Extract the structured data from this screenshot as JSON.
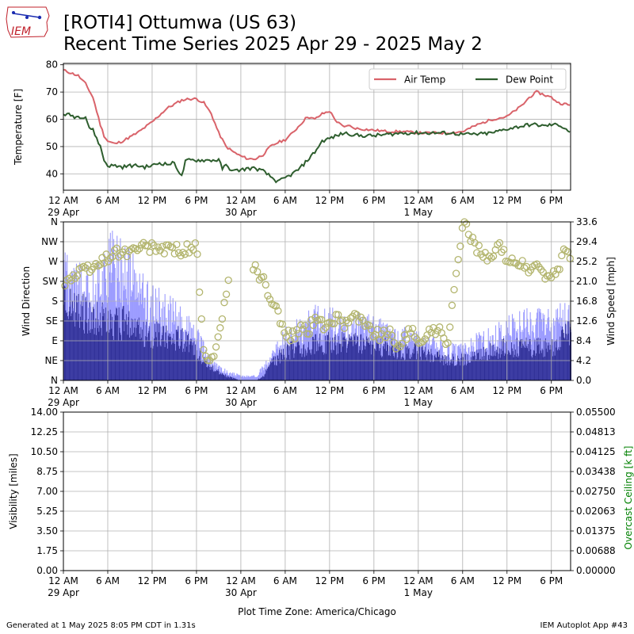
{
  "header": {
    "logo_text": "IEM",
    "title_line1": "[ROTI4] Ottumwa (US 63)",
    "title_line2": "Recent Time Series 2025 Apr 29 - 2025 May 2"
  },
  "footer": {
    "generated": "Generated at 1 May 2025 8:05 PM CDT in 1.31s",
    "app": "IEM Autoplot App #43",
    "timezone": "Plot Time Zone: America/Chicago"
  },
  "colors": {
    "air_temp": "#d9636a",
    "dew_point": "#2e5e2e",
    "wind_bar": "#2f2f96",
    "gust_bar": "#9c9cff",
    "wind_dir": "#b3b56e",
    "ceiling_label": "#008000",
    "grid": "#b0b0b0"
  },
  "chart_data": [
    {
      "type": "line",
      "ylabel": "Temperature [F]",
      "ylim": [
        34,
        80.5
      ],
      "yticks": [
        "40",
        "50",
        "60",
        "70",
        "80"
      ],
      "xlim_hours": [
        0,
        68.6
      ],
      "xticks": [
        "12 AM",
        "6 AM",
        "12 PM",
        "6 PM",
        "12 AM",
        "6 AM",
        "12 PM",
        "6 PM",
        "12 AM",
        "6 AM",
        "12 PM",
        "6 PM"
      ],
      "xtick_dates": [
        "29 Apr",
        "",
        "",
        "",
        "30 Apr",
        "",
        "",
        "",
        "1 May",
        "",
        "",
        ""
      ],
      "legend": "upper-right",
      "grid": true,
      "series": [
        {
          "name": "Air Temp",
          "x_hours": [
            0,
            1,
            2,
            3,
            4,
            5,
            5.5,
            6,
            7,
            8,
            10,
            12,
            14,
            16,
            17,
            18,
            19,
            20,
            21,
            22,
            23,
            24,
            25,
            26,
            27,
            28,
            29,
            30,
            31,
            32,
            33,
            34,
            35,
            36,
            37,
            38,
            38.5,
            39,
            40,
            42,
            44,
            46,
            48,
            50,
            52,
            54,
            56,
            58,
            60,
            61,
            62,
            63,
            64,
            65,
            66,
            66.5,
            67,
            68,
            68.6
          ],
          "values": [
            78,
            77,
            76,
            73,
            68,
            58,
            54,
            52,
            51,
            52,
            55,
            59,
            64,
            67,
            67.5,
            67.5,
            66,
            62,
            55,
            50,
            48,
            46.5,
            45.5,
            45.5,
            47,
            50,
            51.5,
            52.5,
            55,
            58,
            61,
            60,
            62,
            63,
            59,
            57,
            58,
            57,
            56.5,
            56,
            55.5,
            55.5,
            55,
            55,
            55,
            55.5,
            58,
            60,
            61,
            63,
            65,
            68,
            70,
            69,
            68,
            67,
            66,
            65.5,
            65
          ]
        },
        {
          "name": "Dew Point",
          "x_hours": [
            0,
            1,
            1.5,
            2,
            3,
            3.5,
            4,
            5,
            5.5,
            6,
            7,
            8,
            9,
            10,
            11,
            12,
            13,
            14,
            15,
            16,
            16.5,
            17,
            18,
            19,
            20,
            21,
            21.5,
            22,
            23,
            24,
            25,
            26,
            27,
            28,
            29,
            30,
            31,
            32,
            33,
            34,
            35,
            36,
            37,
            38,
            40,
            42,
            44,
            46,
            48,
            50,
            52,
            54,
            56,
            58,
            60,
            62,
            63,
            64,
            65,
            66,
            67,
            68,
            68.6
          ],
          "values": [
            62,
            61.5,
            61,
            61,
            61,
            57,
            56,
            50,
            45,
            43,
            43,
            42.5,
            43,
            43,
            42.5,
            43,
            44,
            43.5,
            44,
            39,
            44.5,
            45,
            45,
            45,
            45,
            45,
            42,
            43,
            41,
            41.5,
            42,
            42,
            41,
            39,
            37,
            38.5,
            40,
            42,
            45,
            48,
            52,
            53,
            54,
            55,
            54,
            54,
            54.5,
            55,
            55,
            55,
            55,
            54.5,
            54.5,
            55,
            56.5,
            57.5,
            58,
            58,
            57.5,
            58,
            58,
            56.5,
            55
          ]
        }
      ]
    },
    {
      "type": "bar",
      "ylabel": "Wind Direction",
      "y2label": "Wind Speed [mph]",
      "dir_ticks": [
        "N",
        "NE",
        "E",
        "SE",
        "S",
        "SW",
        "W",
        "NW",
        "N"
      ],
      "speed_ticks": [
        "0.0",
        "4.2",
        "8.4",
        "12.6",
        "16.8",
        "21.0",
        "25.2",
        "29.4",
        "33.6"
      ],
      "speed_lim": [
        0,
        33.6
      ],
      "dir_lim": [
        0,
        360
      ],
      "xlim_hours": [
        0,
        68.6
      ],
      "xticks": [
        "12 AM",
        "6 AM",
        "12 PM",
        "6 PM",
        "12 AM",
        "6 AM",
        "12 PM",
        "6 PM",
        "12 AM",
        "6 AM",
        "12 PM",
        "6 PM"
      ],
      "xtick_dates": [
        "29 Apr",
        "",
        "",
        "",
        "30 Apr",
        "",
        "",
        "",
        "1 May",
        "",
        "",
        ""
      ],
      "grid": true,
      "wind_speed": {
        "x_hours": [
          0,
          2,
          4,
          6,
          8,
          10,
          12,
          14,
          16,
          18,
          19,
          20,
          21,
          22,
          23,
          24,
          25,
          26,
          27,
          28,
          30,
          32,
          34,
          36,
          38,
          40,
          42,
          44,
          46,
          48,
          50,
          52,
          54,
          56,
          58,
          60,
          62,
          64,
          66,
          68.6
        ],
        "values": [
          19,
          17,
          15,
          14,
          14,
          12,
          11,
          11,
          10,
          7,
          5,
          3,
          2,
          1,
          0.5,
          0,
          0,
          0,
          1,
          4,
          7,
          8,
          9,
          9,
          9,
          9,
          8,
          8,
          7,
          7,
          6,
          5,
          5,
          6,
          7,
          8,
          8,
          8,
          8,
          12
        ]
      },
      "wind_gust": {
        "x_hours": [
          0,
          2,
          4,
          6,
          8,
          10,
          12,
          14,
          16,
          18,
          20,
          22,
          24,
          26,
          28,
          30,
          32,
          34,
          36,
          38,
          40,
          42,
          44,
          46,
          48,
          50,
          52,
          54,
          56,
          58,
          60,
          62,
          64,
          66,
          68.6
        ],
        "values": [
          24,
          22,
          21,
          28,
          27,
          22,
          18,
          16,
          14,
          10,
          4,
          2,
          1,
          1,
          5,
          10,
          12,
          14,
          14,
          12,
          13,
          12,
          11,
          10,
          9,
          8,
          7,
          7,
          9,
          10,
          12,
          13,
          14,
          13,
          16
        ]
      },
      "wind_direction": {
        "x_hours": [
          0,
          1,
          2,
          3,
          4,
          5,
          6,
          7,
          8,
          9,
          10,
          12,
          14,
          16,
          17,
          18,
          19,
          20,
          21,
          22,
          23,
          24,
          25,
          26,
          27,
          28,
          29,
          30,
          31,
          32,
          33,
          34,
          35,
          36,
          37,
          38,
          39,
          40,
          41,
          42,
          43,
          44,
          45,
          46,
          47,
          48,
          49,
          50,
          51,
          52,
          53,
          54,
          55,
          56,
          57,
          58,
          59,
          60,
          61,
          62,
          63,
          64,
          65,
          66,
          67,
          68,
          68.6
        ],
        "values": [
          220,
          230,
          240,
          250,
          255,
          265,
          280,
          290,
          290,
          290,
          300,
          300,
          300,
          295,
          300,
          305,
          50,
          40,
          90,
          200,
          310,
          290,
          280,
          250,
          230,
          180,
          150,
          110,
          100,
          120,
          110,
          140,
          130,
          120,
          150,
          130,
          150,
          140,
          120,
          110,
          100,
          110,
          70,
          100,
          110,
          90,
          100,
          110,
          120,
          80,
          220,
          360,
          330,
          300,
          280,
          290,
          300,
          280,
          270,
          260,
          250,
          260,
          240,
          230,
          260,
          300,
          270
        ]
      }
    },
    {
      "type": "line",
      "ylabel": "Visibility [miles]",
      "y2label": "Overcast Ceiling [k ft]",
      "ylim": [
        0,
        14
      ],
      "y2lim": [
        0,
        0.055
      ],
      "yticks": [
        "0.00",
        "1.75",
        "3.50",
        "5.25",
        "7.00",
        "8.75",
        "10.50",
        "12.25",
        "14.00"
      ],
      "y2ticks": [
        "0.00000",
        "0.00688",
        "0.01375",
        "0.02063",
        "0.02750",
        "0.03438",
        "0.04125",
        "0.04813",
        "0.05500"
      ],
      "xlim_hours": [
        0,
        68.6
      ],
      "xticks": [
        "12 AM",
        "6 AM",
        "12 PM",
        "6 PM",
        "12 AM",
        "6 AM",
        "12 PM",
        "6 PM",
        "12 AM",
        "6 AM",
        "12 PM",
        "6 PM"
      ],
      "xtick_dates": [
        "29 Apr",
        "",
        "",
        "",
        "30 Apr",
        "",
        "",
        "",
        "1 May",
        "",
        "",
        ""
      ],
      "grid": true,
      "series": []
    }
  ]
}
